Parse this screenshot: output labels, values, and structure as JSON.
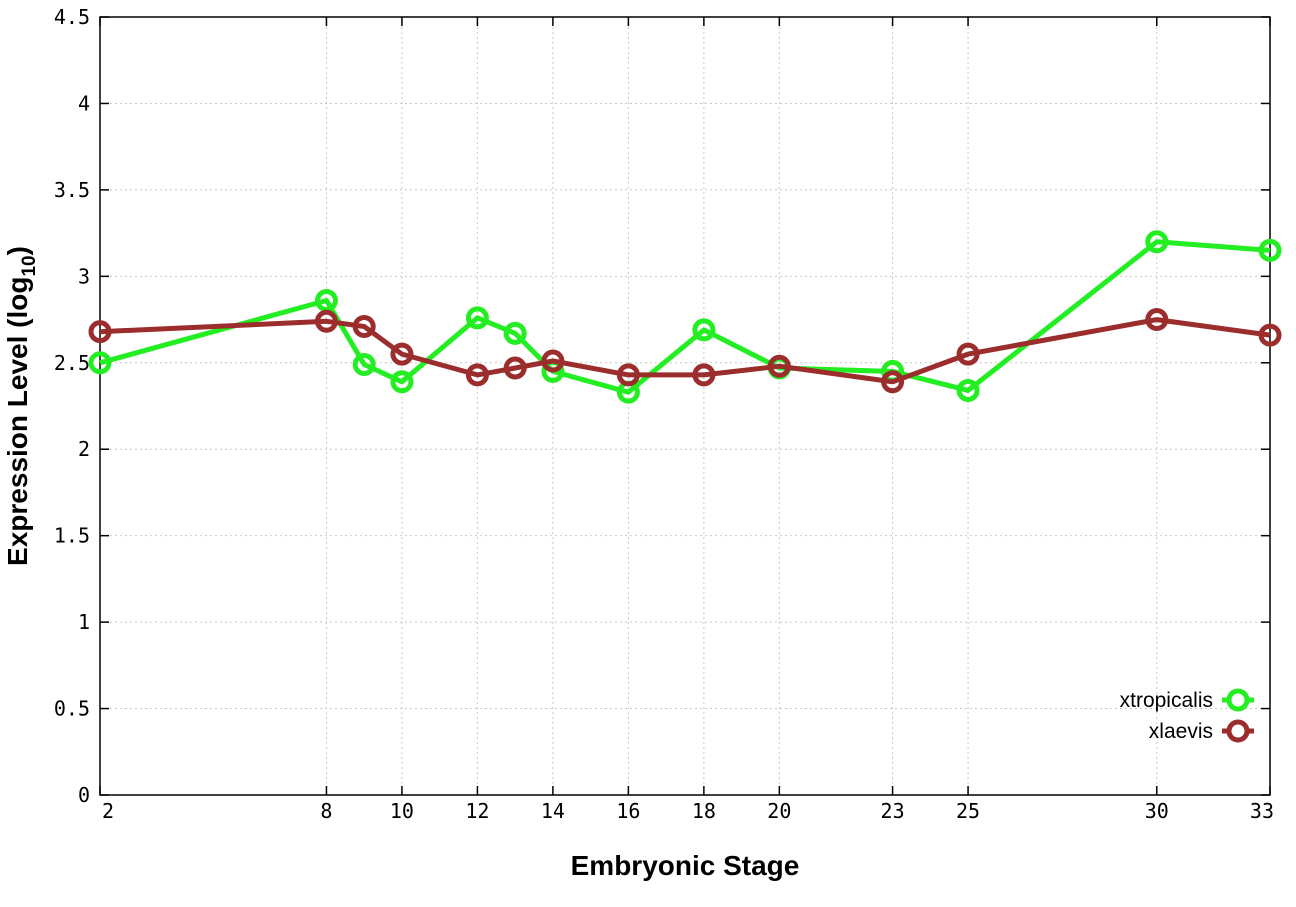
{
  "chart_data": {
    "type": "line",
    "xlabel": "Embryonic Stage",
    "ylabel_main": "Expression Level (log",
    "ylabel_sub": "10",
    "ylabel_close": ")",
    "xlim": [
      2,
      33
    ],
    "ylim": [
      0,
      4.5
    ],
    "x_ticks": [
      2,
      8,
      10,
      12,
      14,
      16,
      18,
      20,
      23,
      25,
      30,
      33
    ],
    "y_ticks": [
      {
        "value": 0,
        "label": "0"
      },
      {
        "value": 0.5,
        "label": "0.5"
      },
      {
        "value": 1,
        "label": "1"
      },
      {
        "value": 1.5,
        "label": "1.5"
      },
      {
        "value": 2,
        "label": "2"
      },
      {
        "value": 2.5,
        "label": "2.5"
      },
      {
        "value": 3,
        "label": "3"
      },
      {
        "value": 3.5,
        "label": "3.5"
      },
      {
        "value": 4,
        "label": "4"
      },
      {
        "value": 4.5,
        "label": "4.5"
      }
    ],
    "x": [
      2,
      8,
      9,
      10,
      12,
      13,
      14,
      16,
      18,
      20,
      23,
      25,
      30,
      33
    ],
    "grid": true,
    "legend_position": "bottom-right",
    "series": [
      {
        "name": "xtropicalis",
        "color": "#22ee22",
        "values": [
          2.5,
          2.86,
          2.49,
          2.39,
          2.76,
          2.67,
          2.45,
          2.33,
          2.69,
          2.47,
          2.45,
          2.34,
          3.2,
          3.15
        ]
      },
      {
        "name": "xlaevis",
        "color": "#9b2d2d",
        "values": [
          2.68,
          2.74,
          2.71,
          2.55,
          2.43,
          2.47,
          2.51,
          2.43,
          2.43,
          2.48,
          2.39,
          2.55,
          2.75,
          2.66
        ]
      }
    ]
  }
}
